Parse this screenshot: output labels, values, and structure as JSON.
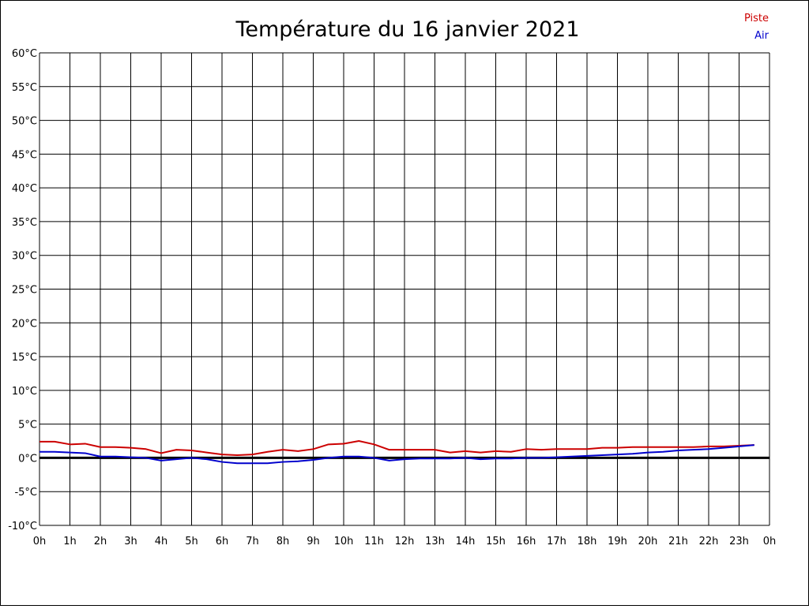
{
  "chart_data": {
    "type": "line",
    "title": "Température du 16 janvier 2021",
    "xlabel": "",
    "ylabel": "",
    "x_ticks": [
      "0h",
      "1h",
      "2h",
      "3h",
      "4h",
      "5h",
      "6h",
      "7h",
      "8h",
      "9h",
      "10h",
      "11h",
      "12h",
      "13h",
      "14h",
      "15h",
      "16h",
      "17h",
      "18h",
      "19h",
      "20h",
      "21h",
      "22h",
      "23h",
      "0h"
    ],
    "y_ticks": [
      "60°C",
      "55°C",
      "50°C",
      "45°C",
      "40°C",
      "35°C",
      "30°C",
      "25°C",
      "20°C",
      "15°C",
      "10°C",
      "5°C",
      "0°C",
      "-5°C",
      "-10°C"
    ],
    "xlim": [
      0,
      24
    ],
    "ylim": [
      -10,
      60
    ],
    "grid": true,
    "legend_position": "top-right",
    "x_hours": [
      0,
      0.5,
      1,
      1.5,
      2,
      2.5,
      3,
      3.5,
      4,
      4.5,
      5,
      5.5,
      6,
      6.5,
      7,
      7.5,
      8,
      8.5,
      9,
      9.5,
      10,
      10.5,
      11,
      11.5,
      12,
      12.5,
      13,
      13.5,
      14,
      14.5,
      15,
      15.5,
      16,
      16.5,
      17,
      17.5,
      18,
      18.5,
      19,
      19.5,
      20,
      20.5,
      21,
      21.5,
      22,
      22.5,
      23,
      23.5
    ],
    "series": [
      {
        "name": "Piste",
        "color": "#cc0000",
        "values": [
          2.4,
          2.4,
          2.0,
          2.1,
          1.6,
          1.6,
          1.5,
          1.3,
          0.7,
          1.2,
          1.1,
          0.8,
          0.5,
          0.4,
          0.5,
          0.9,
          1.2,
          1.0,
          1.3,
          2.0,
          2.1,
          2.5,
          2.0,
          1.2,
          1.2,
          1.2,
          1.2,
          0.8,
          1.0,
          0.8,
          1.0,
          0.9,
          1.3,
          1.2,
          1.3,
          1.3,
          1.3,
          1.5,
          1.5,
          1.6,
          1.6,
          1.6,
          1.6,
          1.6,
          1.7,
          1.7,
          1.8,
          1.9
        ]
      },
      {
        "name": "Air",
        "color": "#0000cc",
        "values": [
          0.9,
          0.9,
          0.8,
          0.7,
          0.2,
          0.2,
          0.1,
          0.0,
          -0.4,
          -0.2,
          0.0,
          -0.2,
          -0.6,
          -0.8,
          -0.8,
          -0.8,
          -0.6,
          -0.5,
          -0.3,
          0.0,
          0.2,
          0.2,
          0.0,
          -0.4,
          -0.2,
          -0.1,
          -0.1,
          -0.1,
          0.0,
          -0.2,
          -0.1,
          -0.1,
          0.0,
          0.0,
          0.1,
          0.2,
          0.3,
          0.4,
          0.5,
          0.6,
          0.8,
          0.9,
          1.1,
          1.2,
          1.3,
          1.5,
          1.7,
          1.9
        ]
      }
    ]
  }
}
